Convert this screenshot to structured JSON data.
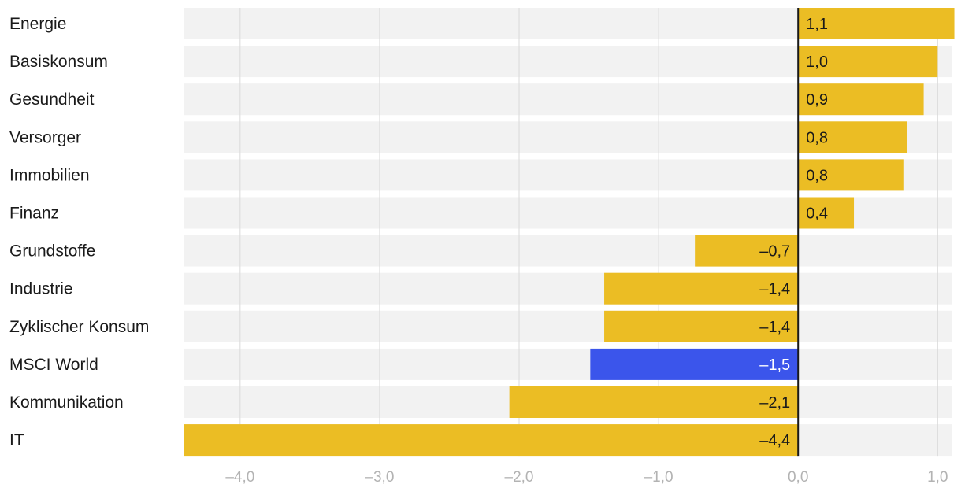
{
  "chart_data": {
    "type": "bar",
    "orientation": "horizontal",
    "categories": [
      "Energie",
      "Basiskonsum",
      "Gesundheit",
      "Versorger",
      "Immobilien",
      "Finanz",
      "Grundstoffe",
      "Industrie",
      "Zyklischer Konsum",
      "MSCI World",
      "Kommunikation",
      "IT"
    ],
    "values": [
      1.12,
      1.0,
      0.9,
      0.78,
      0.76,
      0.4,
      -0.74,
      -1.39,
      -1.39,
      -1.49,
      -2.07,
      -4.4
    ],
    "value_labels": [
      "1,1",
      "1,0",
      "0,9",
      "0,8",
      "0,8",
      "0,4",
      "–0,7",
      "–1,4",
      "–1,4",
      "–1,5",
      "–2,1",
      "–4,4"
    ],
    "highlight": "MSCI World",
    "xlim": [
      -4.4,
      1.1
    ],
    "xticks": [
      -4.0,
      -3.0,
      -2.0,
      -1.0,
      0.0,
      1.0
    ],
    "xtick_labels": [
      "–4,0",
      "–3,0",
      "–2,0",
      "–1,0",
      "0,0",
      "1,0"
    ],
    "title": "",
    "xlabel": "",
    "ylabel": "",
    "grid": true,
    "legend": "none"
  },
  "colors": {
    "bar": "#ebbd24",
    "highlight": "#3b55eb",
    "row_background": "#f2f2f2",
    "gridline": "#d9d9d9",
    "zero_line": "#1a1a1a",
    "value_text": "#1a1a1a",
    "highlight_text": "#ffffff",
    "tick_text": "#b3b3b3"
  }
}
